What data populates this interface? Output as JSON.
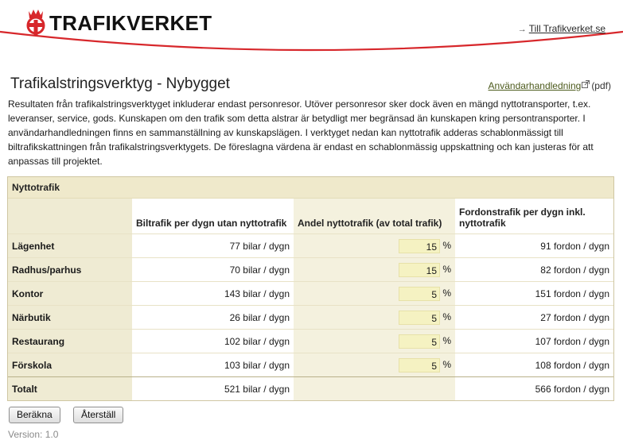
{
  "header": {
    "logo_text": "TRAFIKVERKET",
    "link_text": "Till Trafikverket.se",
    "link_arrow": "→"
  },
  "page": {
    "title": "Trafikalstringsverktyg - Nybygget",
    "manual_link": "Användarhandledning",
    "manual_suffix": "(pdf)",
    "intro": "Resultaten från trafikalstringsverktyget inkluderar endast personresor. Utöver personresor sker dock även en mängd nyttotransporter, t.ex. leveranser, service, gods. Kunskapen om den trafik som detta alstrar är betydligt mer begränsad än kunskapen kring persontransporter. I användarhandledningen finns en sammanställning av kunskapslägen. I verktyget nedan kan nyttotrafik adderas schablonmässigt till biltrafikskattningen från trafikalstringsverktygets. De föreslagna värdena är endast en schablonmässig uppskattning och kan justeras för att anpassas till projektet."
  },
  "panel": {
    "title": "Nyttotrafik",
    "columns": [
      "",
      "Biltrafik per dygn utan nyttotrafik",
      "Andel nyttotrafik (av total trafik)",
      "Fordonstrafik per dygn inkl. nyttotrafik"
    ],
    "pct_unit": "%",
    "rows": [
      {
        "label": "Lägenhet",
        "base": "77 bilar / dygn",
        "share": "15",
        "total": "91 fordon / dygn"
      },
      {
        "label": "Radhus/parhus",
        "base": "70 bilar / dygn",
        "share": "15",
        "total": "82 fordon / dygn"
      },
      {
        "label": "Kontor",
        "base": "143 bilar / dygn",
        "share": "5",
        "total": "151 fordon / dygn"
      },
      {
        "label": "Närbutik",
        "base": "26 bilar / dygn",
        "share": "5",
        "total": "27 fordon / dygn"
      },
      {
        "label": "Restaurang",
        "base": "102 bilar / dygn",
        "share": "5",
        "total": "107 fordon / dygn"
      },
      {
        "label": "Förskola",
        "base": "103 bilar / dygn",
        "share": "5",
        "total": "108 fordon / dygn"
      }
    ],
    "total": {
      "label": "Totalt",
      "base": "521 bilar / dygn",
      "total": "566 fordon / dygn"
    }
  },
  "buttons": {
    "calc": "Beräkna",
    "reset": "Återställ"
  },
  "footer": {
    "version": "Version: 1.0"
  },
  "colors": {
    "brand_red": "#d7272b",
    "input_fill": "#f5f2c2",
    "panel_header": "#efe9cb"
  }
}
